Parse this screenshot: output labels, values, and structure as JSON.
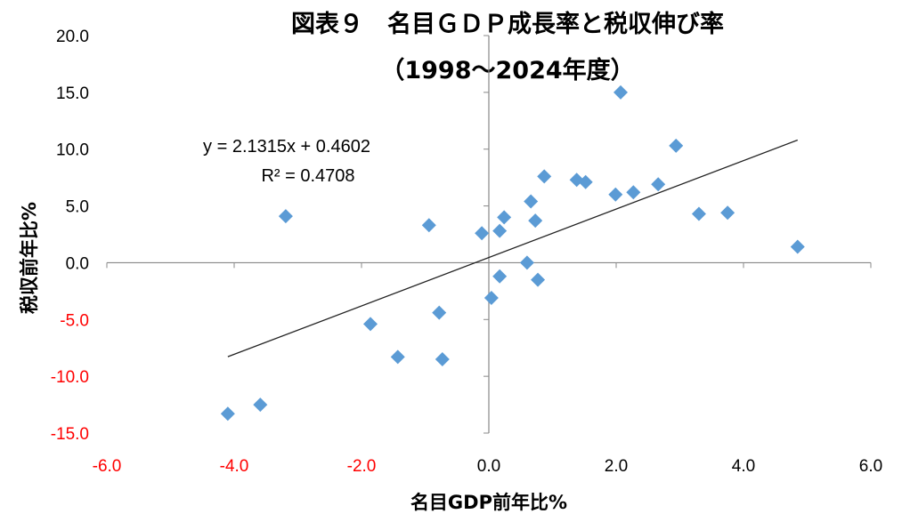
{
  "chart_data": {
    "type": "scatter",
    "title": "図表９　名目ＧＤＰ成長率と税収伸び率",
    "subtitle": "（1998～2024年度）",
    "xlabel": "名目GDP前年比%",
    "ylabel": "税収前年比%",
    "xlim": [
      -6,
      6
    ],
    "ylim": [
      -15,
      20
    ],
    "xticks": [
      "-6.0",
      "-4.0",
      "-2.0",
      "0.0",
      "2.0",
      "4.0",
      "6.0"
    ],
    "xtick_values": [
      -6,
      -4,
      -2,
      0,
      2,
      4,
      6
    ],
    "yticks": [
      "20.0",
      "15.0",
      "10.0",
      "5.0",
      "0.0",
      "-5.0",
      "-10.0",
      "-15.0"
    ],
    "ytick_values": [
      20,
      15,
      10,
      5,
      0,
      -5,
      -10,
      -15
    ],
    "negative_tick_color": "#ff0000",
    "marker_color": "#5b9bd5",
    "marker": "diamond",
    "grid": false,
    "points": [
      [
        2.07,
        15.0
      ],
      [
        2.94,
        10.3
      ],
      [
        0.87,
        7.6
      ],
      [
        1.38,
        7.3
      ],
      [
        1.52,
        7.1
      ],
      [
        2.66,
        6.9
      ],
      [
        1.99,
        6.0
      ],
      [
        2.27,
        6.2
      ],
      [
        0.66,
        5.4
      ],
      [
        0.24,
        4.0
      ],
      [
        0.73,
        3.7
      ],
      [
        -3.19,
        4.1
      ],
      [
        -0.94,
        3.3
      ],
      [
        -0.11,
        2.6
      ],
      [
        0.17,
        2.8
      ],
      [
        3.3,
        4.3
      ],
      [
        3.75,
        4.4
      ],
      [
        4.85,
        1.4
      ],
      [
        0.6,
        0.0
      ],
      [
        0.17,
        -1.2
      ],
      [
        0.77,
        -1.5
      ],
      [
        0.04,
        -3.1
      ],
      [
        -0.78,
        -4.4
      ],
      [
        -1.86,
        -5.4
      ],
      [
        -1.43,
        -8.3
      ],
      [
        -0.73,
        -8.5
      ],
      [
        -3.59,
        -12.5
      ],
      [
        -4.1,
        -13.3
      ]
    ],
    "trendline": {
      "slope": 2.1315,
      "intercept": 0.4602,
      "x_range": [
        -4.1,
        4.85
      ],
      "equation": "y = 2.1315x + 0.4602",
      "r2_label": "R² = 0.4708"
    }
  }
}
